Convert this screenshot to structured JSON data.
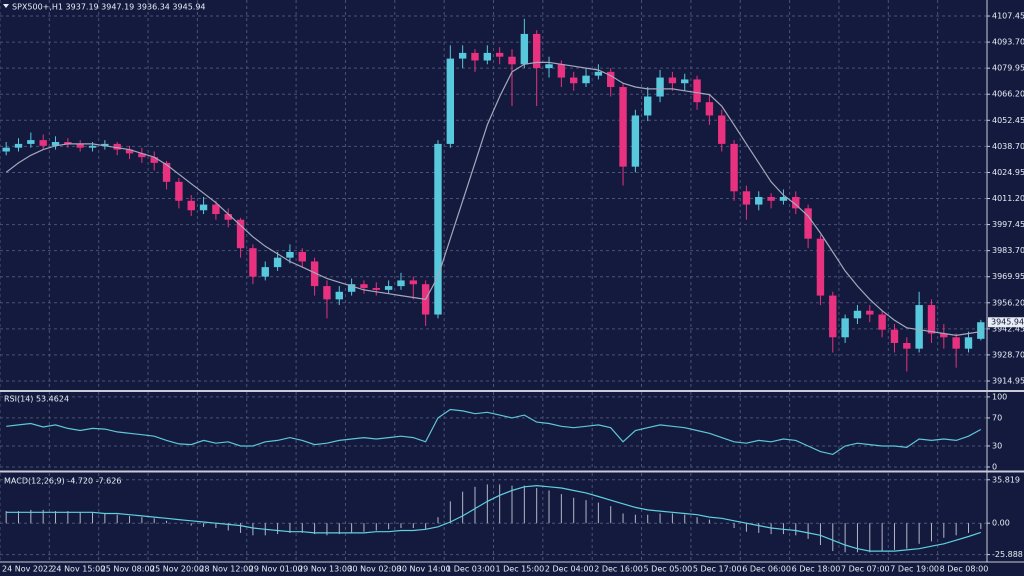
{
  "chart_data": [
    {
      "type": "candlestick",
      "title": "SPX500+,H1  3937.19 3947.19 3936.34 3945.94",
      "categories": [
        "24 Nov 2022",
        null,
        null,
        null,
        "24 Nov 15:00",
        null,
        null,
        null,
        "25 Nov 08:00",
        null,
        null,
        null,
        "25 Nov 20:00",
        null,
        null,
        null,
        "28 Nov 12:00",
        null,
        null,
        null,
        "29 Nov 01:00",
        null,
        null,
        null,
        "29 Nov 13:00",
        null,
        null,
        null,
        "30 Nov 02:00",
        null,
        null,
        null,
        "30 Nov 14:00",
        null,
        null,
        null,
        "1 Dec 03:00",
        null,
        null,
        null,
        "1 Dec 15:00",
        null,
        null,
        null,
        "2 Dec 04:00",
        null,
        null,
        null,
        "2 Dec 16:00",
        null,
        null,
        null,
        "5 Dec 05:00",
        null,
        null,
        null,
        "5 Dec 17:00",
        null,
        null,
        null,
        "6 Dec 06:00",
        null,
        null,
        null,
        "6 Dec 18:00",
        null,
        null,
        null,
        "7 Dec 07:00",
        null,
        null,
        null,
        "7 Dec 19:00",
        null,
        null,
        null,
        "8 Dec 08:00",
        null,
        null,
        null
      ],
      "open": [
        4036,
        4038,
        4040,
        4042,
        4039,
        4041,
        4040,
        4038,
        4039,
        4040,
        4037,
        4035,
        4033,
        4030,
        4020,
        4010,
        4005,
        4008,
        4003,
        4000,
        3985,
        3970,
        3975,
        3980,
        3983,
        3978,
        3965,
        3958,
        3962,
        3966,
        3964,
        3963,
        3965,
        3968,
        3966,
        3950,
        4040,
        4085,
        4088,
        4084,
        4088,
        4086,
        4082,
        4098,
        4080,
        4082,
        4075,
        4072,
        4076,
        4078,
        4070,
        4028,
        4055,
        4065,
        4075,
        4072,
        4074,
        4062,
        4055,
        4040,
        4015,
        4008,
        4012,
        4010,
        4012,
        4006,
        3990,
        3960,
        3938,
        3948,
        3952,
        3950,
        3942,
        3935,
        3932,
        3955,
        3940,
        3938,
        3932,
        3937.19
      ],
      "high": [
        4041,
        4043,
        4046,
        4045,
        4044,
        4043,
        4042,
        4041,
        4042,
        4041,
        4039,
        4038,
        4036,
        4031,
        4022,
        4013,
        4012,
        4010,
        4006,
        4001,
        3987,
        3978,
        3983,
        3987,
        3985,
        3980,
        3968,
        3965,
        3969,
        3968,
        3967,
        3968,
        3972,
        3970,
        3968,
        4042,
        4092,
        4092,
        4090,
        4092,
        4091,
        4090,
        4106,
        4100,
        4086,
        4084,
        4078,
        4080,
        4082,
        4080,
        4072,
        4058,
        4070,
        4079,
        4078,
        4077,
        4076,
        4066,
        4058,
        4042,
        4018,
        4015,
        4014,
        4016,
        4015,
        4008,
        3992,
        3962,
        3950,
        3955,
        3955,
        3952,
        3945,
        3938,
        3962,
        3958,
        3945,
        3940,
        3941,
        3947.19
      ],
      "low": [
        4034,
        4036,
        4038,
        4037,
        4037,
        4038,
        4036,
        4036,
        4037,
        4034,
        4032,
        4030,
        4026,
        4016,
        4006,
        4002,
        4003,
        4000,
        3996,
        3980,
        3966,
        3968,
        3973,
        3977,
        3975,
        3960,
        3948,
        3955,
        3960,
        3961,
        3960,
        3961,
        3963,
        3958,
        3944,
        3948,
        4038,
        4080,
        4078,
        4082,
        4082,
        4060,
        4080,
        4060,
        4075,
        4070,
        4068,
        4070,
        4074,
        4065,
        4018,
        4025,
        4052,
        4062,
        4068,
        4068,
        4058,
        4050,
        4036,
        4010,
        4000,
        4005,
        4006,
        4008,
        4003,
        3985,
        3955,
        3930,
        3935,
        3945,
        3946,
        3938,
        3930,
        3920,
        3930,
        3935,
        3932,
        3922,
        3930,
        3936.34
      ],
      "close": [
        4038,
        4040,
        4042,
        4039,
        4041,
        4040,
        4038,
        4039,
        4040,
        4037,
        4035,
        4033,
        4030,
        4020,
        4010,
        4005,
        4008,
        4003,
        4000,
        3985,
        3970,
        3975,
        3980,
        3983,
        3978,
        3965,
        3958,
        3962,
        3966,
        3964,
        3963,
        3965,
        3968,
        3966,
        3950,
        4040,
        4085,
        4088,
        4084,
        4088,
        4086,
        4082,
        4098,
        4080,
        4082,
        4075,
        4072,
        4076,
        4078,
        4070,
        4028,
        4055,
        4065,
        4075,
        4072,
        4074,
        4062,
        4055,
        4040,
        4015,
        4008,
        4012,
        4010,
        4012,
        4006,
        3990,
        3960,
        3938,
        3948,
        3952,
        3950,
        3942,
        3935,
        3932,
        3955,
        3940,
        3938,
        3932,
        3938,
        3945.94
      ],
      "up_color": "#58c8dc",
      "down_color": "#e8317f",
      "ma": {
        "color": "#a4a8bc",
        "values": [
          4025,
          4030,
          4034,
          4037,
          4039,
          4040,
          4040,
          4040,
          4039,
          4038,
          4037,
          4035,
          4033,
          4029,
          4024,
          4019,
          4014,
          4009,
          4003,
          3997,
          3991,
          3986,
          3982,
          3978,
          3975,
          3972,
          3969,
          3967,
          3965,
          3963,
          3962,
          3961,
          3960,
          3959,
          3958,
          3970,
          3990,
          4010,
          4030,
          4050,
          4065,
          4078,
          4082,
          4083,
          4083,
          4082,
          4081,
          4080,
          4079,
          4076,
          4072,
          4070,
          4069,
          4069,
          4069,
          4068,
          4067,
          4066,
          4060,
          4050,
          4040,
          4030,
          4020,
          4013,
          4008,
          4002,
          3993,
          3983,
          3973,
          3965,
          3958,
          3952,
          3947,
          3943,
          3942,
          3941,
          3940,
          3939,
          3940,
          3941
        ]
      },
      "ylim": [
        3910.2,
        4115.9
      ],
      "yticks": [
        4107.45,
        {
          "value": 4093.7,
          "label": "4093.70"
        },
        4079.95,
        {
          "value": 4066.2,
          "label": "4066.20"
        },
        4052.45,
        {
          "value": 4038.7,
          "label": "4038.70"
        },
        4024.95,
        {
          "value": 4011.2,
          "label": "4011.20"
        },
        3997.45,
        {
          "value": 3983.7,
          "label": "3983.70"
        },
        3969.95,
        {
          "value": 3956.2,
          "label": "3956.20"
        },
        3942.45,
        {
          "value": 3928.7,
          "label": "3928.70"
        },
        3914.95
      ],
      "grid": true
    },
    {
      "type": "line",
      "title": "RSI(14) 53.4624",
      "color": "#5fc6d8",
      "values": [
        58,
        60,
        62,
        57,
        60,
        55,
        52,
        55,
        54,
        50,
        48,
        46,
        44,
        38,
        33,
        32,
        38,
        34,
        36,
        30,
        30,
        36,
        38,
        42,
        38,
        32,
        34,
        38,
        40,
        42,
        40,
        42,
        44,
        42,
        36,
        70,
        82,
        80,
        76,
        78,
        74,
        70,
        74,
        64,
        62,
        58,
        56,
        58,
        60,
        56,
        36,
        52,
        56,
        60,
        58,
        56,
        52,
        48,
        42,
        36,
        34,
        38,
        36,
        40,
        38,
        30,
        22,
        18,
        30,
        34,
        32,
        30,
        30,
        28,
        40,
        38,
        40,
        38,
        44,
        53.46
      ],
      "ylim": [
        -4.3,
        107
      ],
      "yticks": [
        100,
        70,
        30,
        0
      ],
      "grid": true
    },
    {
      "type": "macd",
      "title": "MACD(12,26,9) -4.720 -7.626",
      "histogram": {
        "color": "#b4b8c8",
        "values": [
          10,
          10,
          11,
          11,
          10,
          10,
          9,
          9,
          8,
          7,
          6,
          5,
          4,
          2,
          0,
          -2,
          -3,
          -4,
          -6,
          -8,
          -10,
          -10,
          -9,
          -8,
          -8,
          -9,
          -10,
          -9,
          -8,
          -7,
          -6,
          -5,
          -4,
          -4,
          -5,
          5,
          18,
          26,
          30,
          32,
          32,
          31,
          31,
          29,
          27,
          24,
          21,
          19,
          17,
          14,
          8,
          7,
          7,
          8,
          8,
          7,
          5,
          3,
          0,
          -4,
          -7,
          -8,
          -9,
          -9,
          -10,
          -13,
          -18,
          -23,
          -24,
          -24,
          -24,
          -23,
          -22,
          -21,
          -17,
          -15,
          -12,
          -10,
          -8,
          -4.72
        ]
      },
      "signal": {
        "color": "#5fd0e0",
        "values": [
          9,
          9,
          9,
          9,
          9,
          9,
          9,
          9,
          8,
          8,
          7,
          6,
          5,
          4,
          3,
          2,
          1,
          0,
          -1,
          -2,
          -4,
          -5,
          -6,
          -7,
          -7,
          -8,
          -8,
          -8,
          -8,
          -8,
          -7,
          -7,
          -6,
          -6,
          -5,
          -3,
          1,
          6,
          12,
          18,
          23,
          27,
          30,
          31,
          30,
          29,
          27,
          25,
          22,
          19,
          16,
          13,
          11,
          10,
          9,
          8,
          7,
          5,
          4,
          2,
          0,
          -2,
          -4,
          -5,
          -6,
          -8,
          -10,
          -14,
          -18,
          -21,
          -23,
          -23,
          -23,
          -22,
          -21,
          -19,
          -17,
          -14,
          -11,
          -7.626
        ]
      },
      "ylim": [
        -32,
        41.4
      ],
      "yticks": [
        35.819,
        {
          "value": 0,
          "label": "0.00"
        },
        -25.888
      ],
      "grid": true
    }
  ]
}
